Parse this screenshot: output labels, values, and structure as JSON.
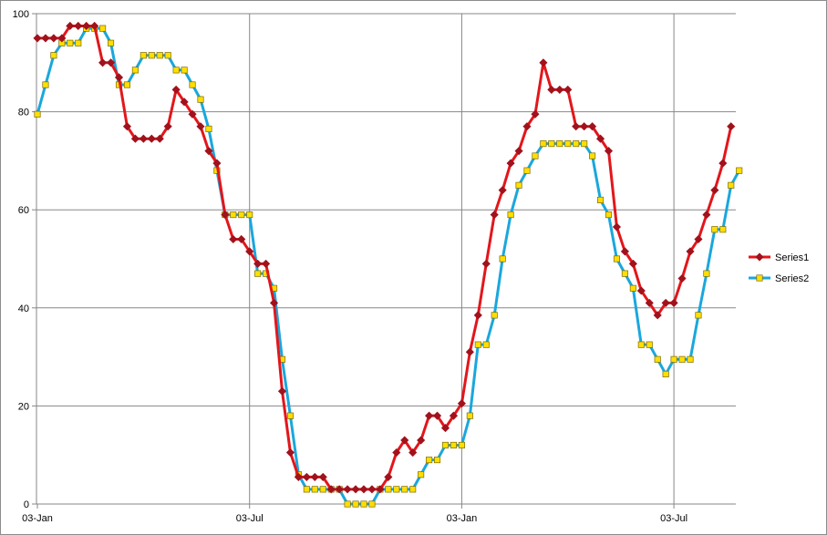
{
  "chart_data": {
    "type": "line",
    "title": "",
    "xlabel": "",
    "ylabel": "",
    "ylim": [
      0,
      100
    ],
    "y_ticks": [
      "0",
      "20",
      "40",
      "60",
      "80",
      "100"
    ],
    "x_ticks": [
      "03-Jan",
      "03-Jul",
      "03-Jan",
      "03-Jul"
    ],
    "grid": true,
    "legend_position": "right",
    "x_step": "weekly",
    "series": [
      {
        "name": "Series1",
        "color": "#e3161b",
        "marker": "diamond",
        "marker_fill": "#a0121c",
        "values": [
          95,
          95,
          95,
          95,
          97.5,
          97.5,
          97.5,
          97.5,
          90,
          90,
          87,
          77,
          74.5,
          74.5,
          74.5,
          74.5,
          77,
          84.5,
          82,
          79.5,
          77,
          72,
          69.5,
          59,
          54,
          54,
          51.5,
          49,
          49,
          41,
          23,
          10.5,
          5.5,
          5.5,
          5.5,
          5.5,
          3,
          3,
          3,
          3,
          3,
          3,
          3,
          5.5,
          10.5,
          13,
          10.5,
          13,
          18,
          18,
          15.5,
          18,
          20.5,
          31,
          38.5,
          49,
          59,
          64,
          69.5,
          72,
          77,
          79.5,
          90,
          84.5,
          84.5,
          84.5,
          77,
          77,
          77,
          74.5,
          72,
          56.5,
          51.5,
          49,
          43.5,
          41,
          38.5,
          41,
          41,
          46,
          51.5,
          54,
          59,
          64,
          69.5,
          77
        ]
      },
      {
        "name": "Series2",
        "color": "#1aa7dd",
        "marker": "square",
        "marker_fill": "#ffde00",
        "values": [
          79.5,
          85.5,
          91.5,
          94,
          94,
          94,
          97,
          97,
          97,
          94,
          85.5,
          85.5,
          88.5,
          91.5,
          91.5,
          91.5,
          91.5,
          88.5,
          88.5,
          85.5,
          82.5,
          76.5,
          68,
          59,
          59,
          59,
          59,
          47,
          47,
          44,
          29.5,
          18,
          6,
          3,
          3,
          3,
          3,
          3,
          0,
          0,
          0,
          0,
          3,
          3,
          3,
          3,
          3,
          6,
          9,
          9,
          12,
          12,
          12,
          18,
          32.5,
          32.5,
          38.5,
          50,
          59,
          65,
          68,
          71,
          73.5,
          73.5,
          73.5,
          73.5,
          73.5,
          73.5,
          71,
          62,
          59,
          50,
          47,
          44,
          32.5,
          32.5,
          29.5,
          26.5,
          29.5,
          29.5,
          29.5,
          38.5,
          47,
          56,
          56,
          65,
          68
        ]
      }
    ]
  }
}
